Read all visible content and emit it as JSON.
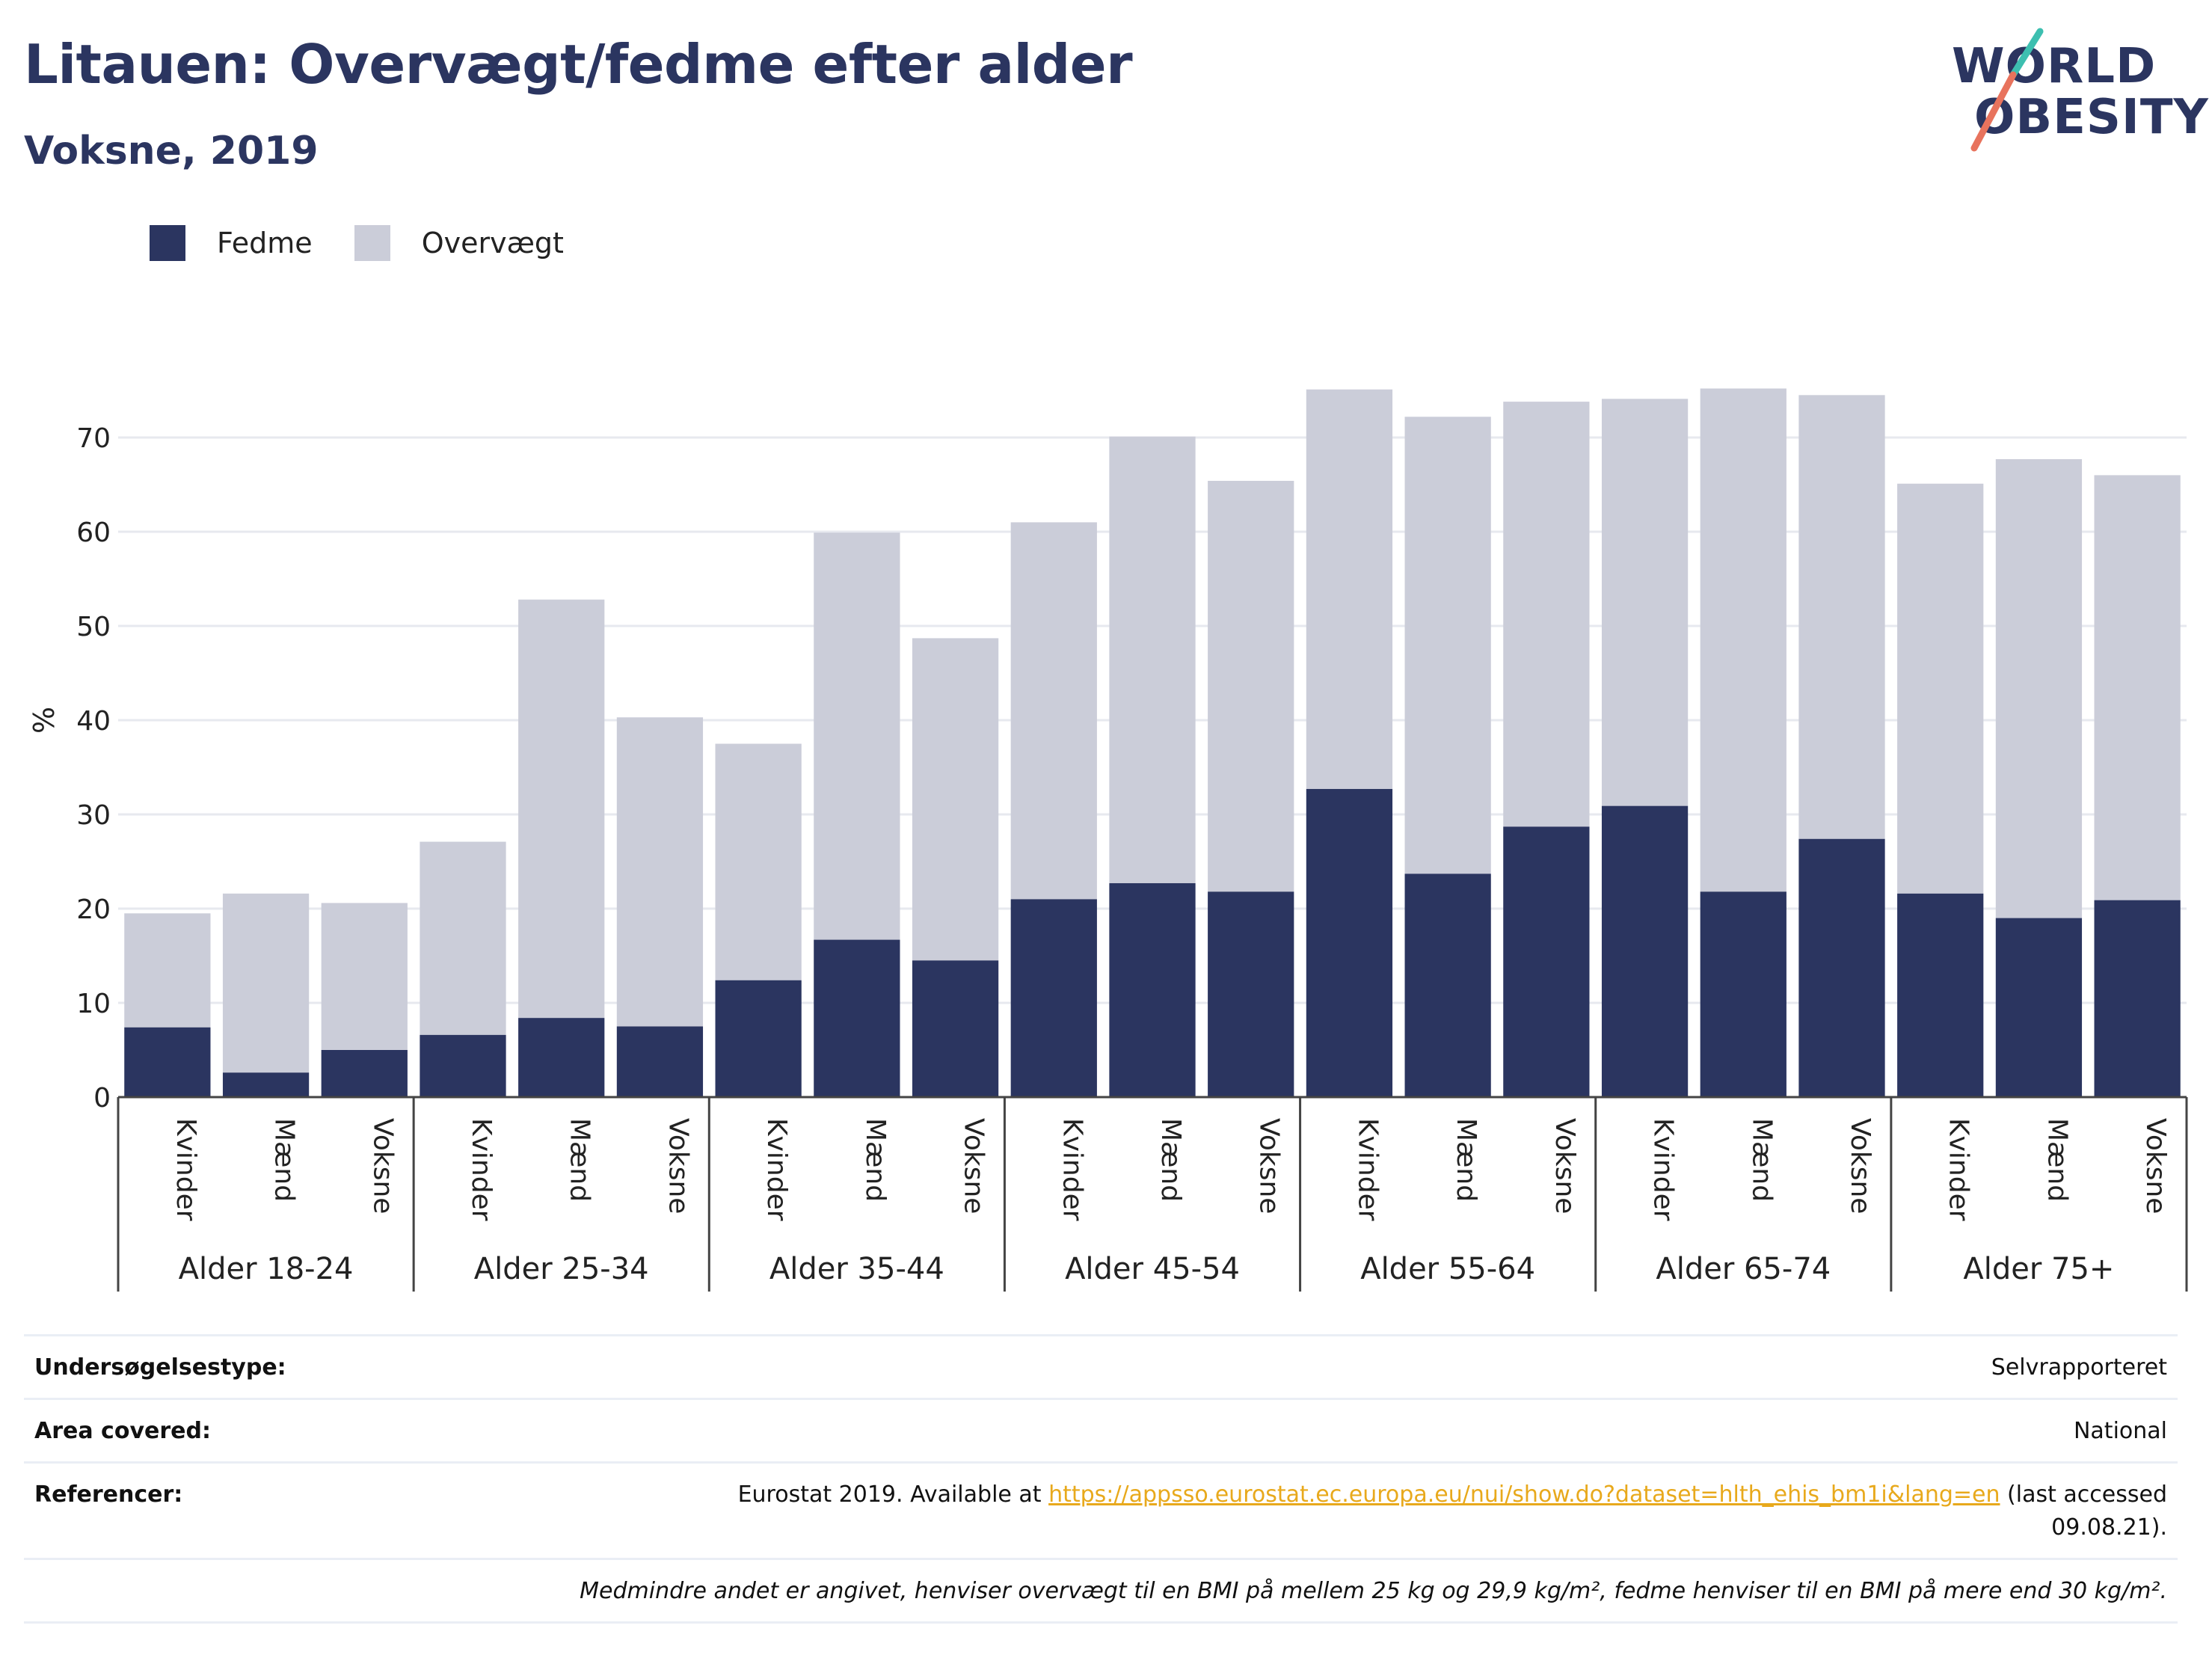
{
  "header": {
    "title": "Litauen: Overvægt/fedme efter alder",
    "subtitle": "Voksne, 2019"
  },
  "logo": {
    "line1": "WORLD",
    "line2": "OBESITY"
  },
  "colors": {
    "fedme": "#2b3560",
    "overvaegt": "#cbcdd9",
    "accent_teal": "#3dbfb0",
    "accent_coral": "#e8735d",
    "link": "#e8a91c"
  },
  "legend": [
    {
      "label": "Fedme",
      "color": "#2b3560"
    },
    {
      "label": "Overvægt",
      "color": "#cbcdd9"
    }
  ],
  "chart_data": {
    "type": "bar",
    "stacked": true,
    "ylabel": "%",
    "ylim": [
      0,
      80
    ],
    "yticks": [
      0,
      10,
      20,
      30,
      40,
      50,
      60,
      70
    ],
    "grid": true,
    "groups": [
      "Alder 18-24",
      "Alder 25-34",
      "Alder 35-44",
      "Alder 45-54",
      "Alder 55-64",
      "Alder 65-74",
      "Alder 75+"
    ],
    "subcategories": [
      "Kvinder",
      "Mænd",
      "Voksne"
    ],
    "series": [
      {
        "name": "Fedme",
        "values": [
          7.4,
          2.6,
          5.0,
          6.6,
          8.4,
          7.5,
          12.4,
          16.7,
          14.5,
          21.0,
          22.7,
          21.8,
          32.7,
          23.7,
          28.7,
          30.9,
          21.8,
          27.4,
          21.6,
          19.0,
          20.9
        ]
      },
      {
        "name": "Overvægt",
        "values": [
          12.1,
          19.0,
          15.6,
          20.5,
          44.4,
          32.8,
          25.1,
          43.2,
          34.2,
          40.0,
          47.4,
          43.6,
          42.4,
          48.5,
          45.1,
          43.2,
          53.4,
          47.1,
          43.5,
          48.7,
          45.1
        ]
      }
    ]
  },
  "info": {
    "survey_label": "Undersøgelsestype:",
    "survey_value": "Selvrapporteret",
    "area_label": "Area covered:",
    "area_value": "National",
    "ref_label": "Referencer:",
    "ref_prefix": "Eurostat 2019. Available at ",
    "ref_link": "https://appsso.eurostat.ec.europa.eu/nui/show.do?dataset=hlth_ehis_bm1i&lang=en",
    "ref_suffix": " (last accessed",
    "ref_date": "09.08.21).",
    "note": "Medmindre andet er angivet, henviser overvægt til en BMI på mellem 25 kg og 29,9 kg/m², fedme henviser til en BMI på mere end 30 kg/m²."
  }
}
